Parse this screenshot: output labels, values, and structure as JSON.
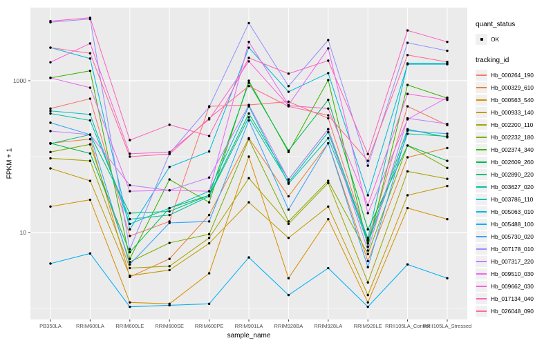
{
  "legend": {
    "quant_status_title": "quant_status",
    "quant_status_value": "OK",
    "tracking_id_title": "tracking_id"
  },
  "chart_data": {
    "type": "line",
    "title": "",
    "xlabel": "sample_name",
    "ylabel": "FPKM + 1",
    "y_scale": "log10",
    "ylim": [
      0.72,
      9200
    ],
    "grid": "on",
    "legend_position": "right",
    "panel_color": "#EBEBEB",
    "gridline_color": "#FFFFFF",
    "point_color": "#000000",
    "tick_label_color": "#4D4D4D",
    "y_ticks": [
      {
        "value": 10,
        "label": "10"
      },
      {
        "value": 1000,
        "label": "1000"
      }
    ],
    "y_minor_gridlines": [
      1,
      100
    ],
    "categories": [
      "PB350LA",
      "RRIM600LA",
      "RRIM600LE",
      "RRIM600SE",
      "RRIM600PE",
      "RRIM901LA",
      "RRIM928BA",
      "RRIM928LA",
      "RRIM928LE",
      "RRII105LA_Control",
      "RRII105LA_Stressed"
    ],
    "series": [
      {
        "name": "Hb_000264_190",
        "color": "#F8766D",
        "values": [
          430,
          580,
          9,
          14,
          460,
          480,
          530,
          320,
          8,
          460,
          260
        ]
      },
      {
        "name": "Hb_000329_610",
        "color": "#EA8331",
        "values": [
          150,
          170,
          2.6,
          4.5,
          17,
          175,
          30,
          150,
          4.2,
          98,
          130
        ]
      },
      {
        "name": "Hb_000563_540",
        "color": "#D89000",
        "values": [
          22,
          27,
          1.2,
          1.15,
          2.9,
          100,
          2.5,
          15,
          1.2,
          21,
          15
        ]
      },
      {
        "name": "Hb_000933_140",
        "color": "#C09B00",
        "values": [
          70,
          48,
          2.7,
          3.2,
          7.2,
          25,
          8.5,
          22,
          1.5,
          31,
          41
        ]
      },
      {
        "name": "Hb_002200_110",
        "color": "#A3A500",
        "values": [
          95,
          88,
          3.4,
          3.6,
          8.5,
          52,
          13,
          45,
          2.2,
          64,
          51
        ]
      },
      {
        "name": "Hb_002232_180",
        "color": "#7CAE00",
        "values": [
          115,
          145,
          4.1,
          7.3,
          9.5,
          170,
          14,
          48,
          5.2,
          140,
          71
        ]
      },
      {
        "name": "Hb_002374_340",
        "color": "#39B600",
        "values": [
          1090,
          1350,
          4.5,
          50,
          25,
          1000,
          115,
          1020,
          6.5,
          880,
          590
        ]
      },
      {
        "name": "Hb_002609_260",
        "color": "#00BB4E",
        "values": [
          150,
          110,
          5.5,
          21,
          31,
          940,
          120,
          560,
          11,
          140,
          88
        ]
      },
      {
        "name": "Hb_002890_220",
        "color": "#00BF7D",
        "values": [
          148,
          195,
          18,
          19,
          31,
          370,
          50,
          230,
          7.8,
          230,
          180
        ]
      },
      {
        "name": "Hb_003627_020",
        "color": "#00C1A3",
        "values": [
          370,
          300,
          15,
          17,
          30,
          330,
          46,
          210,
          7.2,
          200,
          185
        ]
      },
      {
        "name": "Hb_003786_110",
        "color": "#00BFC4",
        "values": [
          400,
          360,
          13,
          21,
          35,
          460,
          44,
          175,
          8.5,
          1690,
          1700
        ]
      },
      {
        "name": "Hb_005063_010",
        "color": "#00BAE0",
        "values": [
          2730,
          1960,
          11,
          73,
          117,
          2730,
          715,
          1260,
          31,
          1650,
          1650
        ]
      },
      {
        "name": "Hb_005488_100",
        "color": "#00B0F6",
        "values": [
          3.9,
          5.3,
          1.05,
          1.1,
          1.15,
          4.7,
          1.5,
          3.4,
          1.05,
          3.8,
          2.5
        ]
      },
      {
        "name": "Hb_005730_020",
        "color": "#35A2FF",
        "values": [
          280,
          195,
          3.8,
          13.4,
          14,
          300,
          20,
          150,
          3.5,
          220,
          200
        ]
      },
      {
        "name": "Hb_007178_010",
        "color": "#9590FF",
        "values": [
          5900,
          6500,
          6,
          110,
          450,
          5750,
          850,
          3430,
          76,
          3160,
          2480
        ]
      },
      {
        "name": "Hb_007317_220",
        "color": "#C77CFF",
        "values": [
          217,
          195,
          42,
          36,
          53,
          480,
          50,
          230,
          5.8,
          320,
          270
        ]
      },
      {
        "name": "Hb_009510_030",
        "color": "#E76BF3",
        "values": [
          1090,
          810,
          35,
          36,
          35,
          3250,
          480,
          2670,
          18,
          310,
          600
        ]
      },
      {
        "name": "Hb_009662_030",
        "color": "#FA62DB",
        "values": [
          1750,
          3100,
          109,
          115,
          310,
          1800,
          470,
          430,
          23,
          670,
          560
        ]
      },
      {
        "name": "Hb_017134_040",
        "color": "#FF62BC",
        "values": [
          6100,
          6760,
          165,
          263,
          187,
          2000,
          1240,
          1840,
          108,
          4600,
          3250
        ]
      },
      {
        "name": "Hb_026048_090",
        "color": "#FF6A98",
        "values": [
          2730,
          2300,
          100,
          108,
          320,
          850,
          460,
          350,
          88,
          2180,
          1770
        ]
      }
    ]
  }
}
